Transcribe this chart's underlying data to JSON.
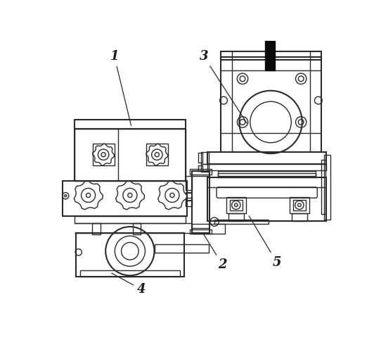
{
  "background_color": "#ffffff",
  "line_color": "#2a2a2a",
  "dark_color": "#0a0a0a",
  "label_color": "#1a1a1a",
  "lw": 1.0,
  "lw2": 1.5
}
